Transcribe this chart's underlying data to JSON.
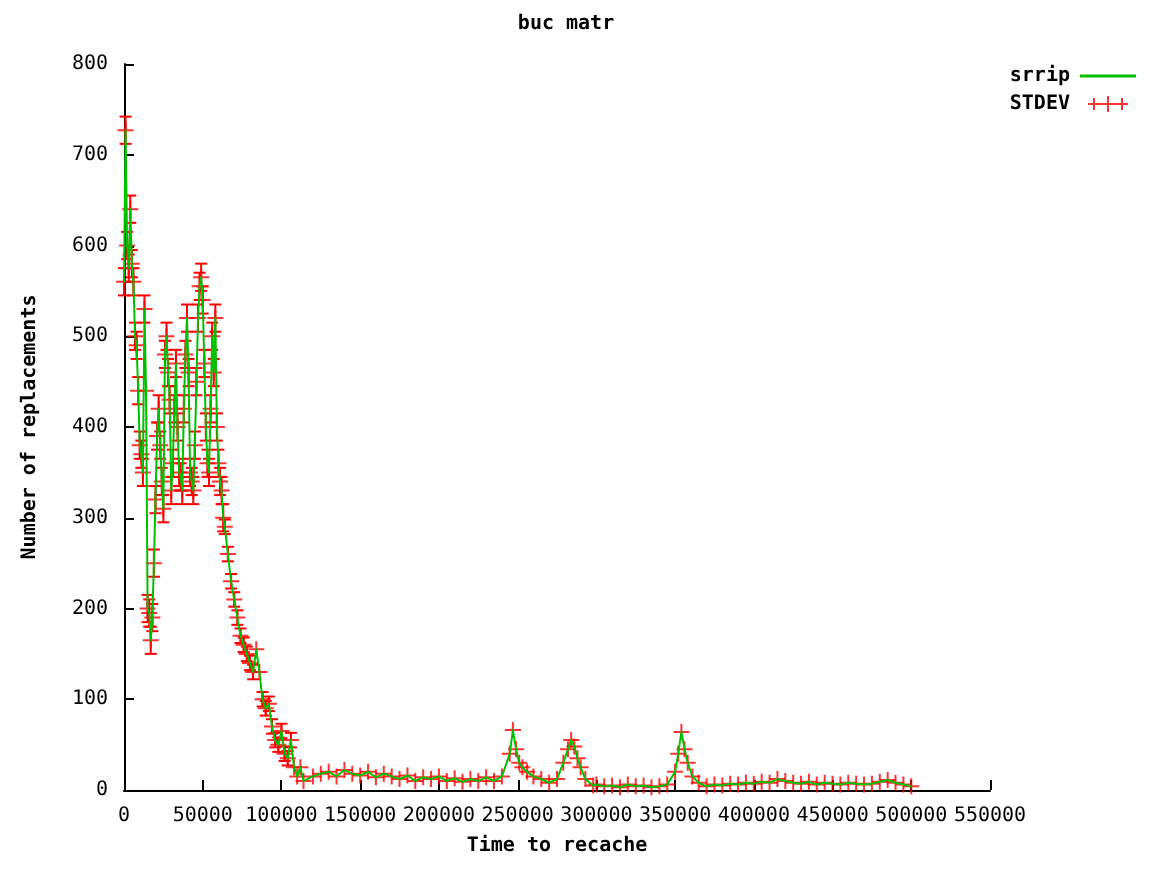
{
  "chart_data": {
    "type": "line",
    "title": "buc matr",
    "xlabel": "Time to recache",
    "ylabel": "Number of replacements",
    "xlim": [
      0,
      550000
    ],
    "xticks": [
      0,
      50000,
      100000,
      150000,
      200000,
      250000,
      300000,
      350000,
      400000,
      450000,
      500000,
      550000
    ],
    "ylim": [
      0,
      800
    ],
    "yticks": [
      0,
      100,
      200,
      300,
      400,
      500,
      600,
      700,
      800
    ],
    "grid": false,
    "legend": "top right",
    "x": [
      0,
      1000,
      2000,
      3000,
      4000,
      5000,
      6000,
      7000,
      8000,
      9000,
      10000,
      11000,
      12000,
      13000,
      14000,
      15000,
      16000,
      17000,
      18000,
      19000,
      20000,
      21000,
      22000,
      23000,
      24000,
      25000,
      26000,
      27000,
      28000,
      29000,
      30000,
      31000,
      32000,
      33000,
      34000,
      35000,
      36000,
      37000,
      38000,
      39000,
      40000,
      41000,
      42000,
      43000,
      44000,
      45000,
      46000,
      47000,
      48000,
      49000,
      50000,
      51000,
      52000,
      53000,
      54000,
      55000,
      56000,
      57000,
      58000,
      59000,
      60000,
      61000,
      62000,
      63000,
      64000,
      66000,
      68000,
      70000,
      72000,
      74000,
      76000,
      78000,
      80000,
      82000,
      84000,
      86000,
      88000,
      90000,
      92000,
      94000,
      96000,
      98000,
      100000,
      102000,
      104000,
      106000,
      108000,
      110000,
      112000,
      114000,
      120000,
      125000,
      130000,
      135000,
      140000,
      145000,
      150000,
      155000,
      160000,
      165000,
      170000,
      175000,
      180000,
      185000,
      190000,
      195000,
      200000,
      205000,
      210000,
      215000,
      220000,
      225000,
      230000,
      235000,
      240000,
      245000,
      247000,
      249000,
      251000,
      253000,
      256000,
      260000,
      265000,
      270000,
      275000,
      279000,
      282000,
      284000,
      286000,
      288000,
      290000,
      293000,
      298000,
      300000,
      305000,
      310000,
      315000,
      320000,
      325000,
      330000,
      335000,
      340000,
      345000,
      350000,
      352000,
      354000,
      356000,
      358000,
      361000,
      365000,
      370000,
      375000,
      380000,
      385000,
      390000,
      395000,
      400000,
      405000,
      410000,
      415000,
      420000,
      425000,
      430000,
      435000,
      440000,
      445000,
      450000,
      455000,
      460000,
      465000,
      470000,
      475000,
      480000,
      485000,
      490000,
      495000,
      500000
    ],
    "series": [
      {
        "name": "srrip",
        "color": "#00c000",
        "values": [
          560,
          727,
          600,
          575,
          640,
          580,
          560,
          500,
          490,
          440,
          380,
          370,
          350,
          530,
          440,
          200,
          195,
          165,
          190,
          250,
          320,
          390,
          420,
          380,
          340,
          310,
          480,
          500,
          460,
          430,
          330,
          360,
          420,
          470,
          400,
          350,
          345,
          330,
          420,
          480,
          520,
          460,
          350,
          340,
          330,
          380,
          450,
          520,
          555,
          565,
          540,
          470,
          400,
          360,
          350,
          420,
          500,
          460,
          520,
          400,
          360,
          340,
          330,
          300,
          290,
          260,
          230,
          210,
          190,
          170,
          160,
          150,
          140,
          130,
          155,
          130,
          100,
          90,
          95,
          70,
          55,
          50,
          65,
          40,
          35,
          55,
          25,
          15,
          25,
          10,
          15,
          18,
          20,
          15,
          22,
          18,
          16,
          20,
          14,
          18,
          15,
          12,
          16,
          10,
          14,
          12,
          15,
          10,
          13,
          9,
          12,
          10,
          14,
          10,
          15,
          40,
          66,
          45,
          30,
          25,
          20,
          15,
          12,
          8,
          12,
          30,
          45,
          55,
          48,
          35,
          25,
          12,
          5,
          6,
          4,
          5,
          3,
          6,
          4,
          5,
          3,
          4,
          6,
          20,
          40,
          64,
          45,
          30,
          15,
          8,
          4,
          6,
          5,
          7,
          6,
          8,
          7,
          9,
          8,
          12,
          10,
          8,
          7,
          9,
          6,
          8,
          7,
          6,
          8,
          7,
          6,
          7,
          9,
          11,
          8,
          6,
          4
        ]
      },
      {
        "name": "STDEV",
        "type": "scatter",
        "color": "#ff0000",
        "marker": "cross",
        "values": [
          560,
          727,
          600,
          575,
          640,
          580,
          560,
          500,
          490,
          440,
          380,
          370,
          350,
          530,
          440,
          200,
          195,
          165,
          190,
          250,
          320,
          390,
          420,
          380,
          340,
          310,
          480,
          500,
          460,
          430,
          330,
          360,
          420,
          470,
          400,
          350,
          345,
          330,
          420,
          480,
          520,
          460,
          350,
          340,
          330,
          380,
          450,
          520,
          555,
          565,
          540,
          470,
          400,
          360,
          350,
          420,
          500,
          460,
          520,
          400,
          360,
          340,
          330,
          300,
          290,
          260,
          230,
          210,
          190,
          170,
          160,
          150,
          140,
          130,
          155,
          130,
          100,
          90,
          95,
          70,
          55,
          50,
          65,
          40,
          35,
          55,
          25,
          15,
          25,
          10,
          15,
          18,
          20,
          15,
          22,
          18,
          16,
          20,
          14,
          18,
          15,
          12,
          16,
          10,
          14,
          12,
          15,
          10,
          13,
          9,
          12,
          10,
          14,
          10,
          15,
          40,
          66,
          45,
          30,
          25,
          20,
          15,
          12,
          8,
          12,
          30,
          45,
          55,
          48,
          35,
          25,
          12,
          5,
          6,
          4,
          5,
          3,
          6,
          4,
          5,
          3,
          4,
          6,
          20,
          40,
          64,
          45,
          30,
          15,
          8,
          4,
          6,
          5,
          7,
          6,
          8,
          7,
          9,
          8,
          12,
          10,
          8,
          7,
          9,
          6,
          8,
          7,
          6,
          8,
          7,
          6,
          7,
          9,
          11,
          8,
          6,
          4
        ],
        "errors": [
          15,
          15,
          15,
          15,
          15,
          15,
          15,
          15,
          15,
          15,
          15,
          15,
          15,
          15,
          null,
          15,
          15,
          15,
          15,
          15,
          15,
          15,
          15,
          15,
          15,
          15,
          15,
          15,
          15,
          15,
          15,
          15,
          15,
          15,
          15,
          15,
          15,
          15,
          15,
          15,
          15,
          15,
          15,
          15,
          15,
          15,
          15,
          15,
          15,
          15,
          15,
          15,
          15,
          15,
          15,
          15,
          15,
          15,
          15,
          15,
          15,
          15,
          15,
          15,
          8,
          8,
          8,
          8,
          8,
          8,
          8,
          8,
          8,
          8,
          null,
          null,
          8,
          8,
          8,
          8,
          8,
          8,
          8,
          8,
          8,
          8,
          null,
          null,
          null,
          null,
          null,
          null,
          null,
          null,
          null,
          null,
          null,
          null,
          null,
          null,
          null,
          null,
          null,
          null,
          null,
          null,
          null,
          null,
          null,
          null,
          null,
          null,
          null,
          null,
          null,
          null,
          null,
          null,
          null,
          null,
          null,
          null,
          null,
          null,
          null,
          null,
          null,
          null,
          null,
          null,
          null,
          null,
          null,
          null,
          null,
          null,
          null,
          null,
          null,
          null,
          null,
          null,
          null,
          null,
          null,
          null,
          null,
          null,
          null,
          null,
          null,
          null,
          null,
          null,
          null,
          null,
          null,
          null,
          null,
          null,
          null,
          null,
          null,
          null,
          null,
          null,
          null,
          null,
          null,
          null,
          null,
          null,
          null,
          null,
          null,
          null,
          null
        ]
      }
    ]
  }
}
